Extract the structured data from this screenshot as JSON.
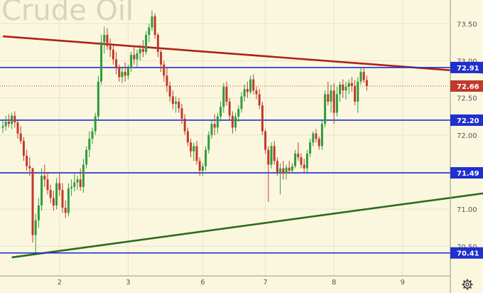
{
  "watermark": "Crude Oil",
  "colors": {
    "background": "#fbf7df",
    "grid": "#e9e4c6",
    "candle_up": "#2e9c3a",
    "candle_down": "#c0392b",
    "level_line": "#1f2fd0",
    "resistance_trend": "#b0201a",
    "support_trend": "#2c6b1e",
    "last_price": "#c0392b"
  },
  "settings_icon": "gear-icon",
  "chart_data": {
    "type": "candlestick",
    "title": "",
    "y_ticks": [
      "70.50",
      "71.00",
      "71.50",
      "72.00",
      "72.50",
      "73.00",
      "73.50"
    ],
    "ylim": [
      70.1,
      73.82
    ],
    "x_ticks": [
      "2",
      "3",
      "6",
      "7",
      "8",
      "9"
    ],
    "level_lines": [
      {
        "value": 72.91,
        "label": "72.91"
      },
      {
        "value": 72.2,
        "label": "72.20"
      },
      {
        "value": 71.49,
        "label": "71.49"
      },
      {
        "value": 70.41,
        "label": "70.41"
      }
    ],
    "last_price": {
      "value": 72.66,
      "label": "72.66"
    },
    "trendlines": [
      {
        "name": "resistance",
        "from": {
          "bar": 0,
          "y": 73.33
        },
        "to": {
          "bar": 197,
          "y": 72.73
        }
      },
      {
        "name": "support",
        "from": {
          "bar": 3,
          "y": 70.35
        },
        "to": {
          "bar": 197,
          "y": 71.41
        }
      }
    ],
    "candles": [
      [
        72.1,
        72.2,
        72.03,
        72.12
      ],
      [
        72.12,
        72.26,
        72.06,
        72.18
      ],
      [
        72.18,
        72.28,
        72.1,
        72.15
      ],
      [
        72.15,
        72.3,
        72.08,
        72.26
      ],
      [
        72.26,
        72.32,
        72.1,
        72.17
      ],
      [
        72.17,
        72.2,
        71.95,
        72.02
      ],
      [
        72.02,
        72.12,
        71.88,
        71.92
      ],
      [
        71.92,
        71.97,
        71.65,
        71.72
      ],
      [
        71.72,
        71.8,
        71.52,
        71.58
      ],
      [
        71.58,
        71.7,
        71.45,
        71.55
      ],
      [
        71.55,
        71.56,
        70.55,
        70.65
      ],
      [
        70.65,
        70.94,
        70.41,
        70.85
      ],
      [
        70.85,
        71.15,
        70.75,
        71.05
      ],
      [
        71.05,
        71.55,
        70.98,
        71.45
      ],
      [
        71.45,
        71.6,
        71.3,
        71.4
      ],
      [
        71.4,
        71.5,
        71.2,
        71.26
      ],
      [
        71.26,
        71.33,
        71.08,
        71.15
      ],
      [
        71.15,
        71.25,
        70.98,
        71.05
      ],
      [
        71.05,
        71.42,
        71.0,
        71.35
      ],
      [
        71.35,
        71.5,
        71.18,
        71.26
      ],
      [
        71.26,
        71.35,
        70.95,
        71.02
      ],
      [
        71.02,
        71.12,
        70.88,
        70.95
      ],
      [
        70.95,
        71.35,
        70.9,
        71.28
      ],
      [
        71.28,
        71.4,
        71.18,
        71.3
      ],
      [
        71.3,
        71.48,
        71.24,
        71.36
      ],
      [
        71.36,
        71.45,
        71.26,
        71.4
      ],
      [
        71.4,
        71.55,
        71.25,
        71.3
      ],
      [
        71.3,
        71.68,
        71.22,
        71.6
      ],
      [
        71.6,
        71.85,
        71.55,
        71.8
      ],
      [
        71.8,
        72.05,
        71.7,
        71.95
      ],
      [
        71.95,
        72.1,
        71.88,
        72.05
      ],
      [
        72.05,
        72.3,
        72.0,
        72.25
      ],
      [
        72.25,
        72.8,
        72.2,
        72.72
      ],
      [
        72.72,
        73.35,
        72.68,
        73.25
      ],
      [
        73.25,
        73.46,
        73.1,
        73.35
      ],
      [
        73.35,
        73.44,
        73.15,
        73.2
      ],
      [
        73.2,
        73.3,
        73.05,
        73.15
      ],
      [
        73.15,
        73.22,
        72.95,
        73.02
      ],
      [
        73.02,
        73.12,
        72.82,
        72.9
      ],
      [
        72.9,
        72.95,
        72.72,
        72.78
      ],
      [
        72.78,
        72.92,
        72.7,
        72.85
      ],
      [
        72.85,
        72.98,
        72.72,
        72.8
      ],
      [
        72.8,
        72.95,
        72.75,
        72.9
      ],
      [
        72.9,
        73.12,
        72.85,
        73.08
      ],
      [
        73.08,
        73.2,
        72.95,
        73.02
      ],
      [
        73.02,
        73.15,
        72.92,
        73.1
      ],
      [
        73.1,
        73.22,
        73.0,
        73.16
      ],
      [
        73.16,
        73.28,
        73.05,
        73.12
      ],
      [
        73.12,
        73.4,
        73.08,
        73.35
      ],
      [
        73.35,
        73.5,
        73.25,
        73.45
      ],
      [
        73.45,
        73.68,
        73.4,
        73.6
      ],
      [
        73.6,
        73.64,
        73.3,
        73.35
      ],
      [
        73.35,
        73.38,
        73.05,
        73.12
      ],
      [
        73.12,
        73.15,
        72.85,
        72.95
      ],
      [
        72.95,
        73.0,
        72.72,
        72.8
      ],
      [
        72.8,
        72.9,
        72.58,
        72.66
      ],
      [
        72.66,
        72.72,
        72.45,
        72.52
      ],
      [
        72.52,
        72.6,
        72.35,
        72.42
      ],
      [
        72.42,
        72.52,
        72.3,
        72.45
      ],
      [
        72.45,
        72.5,
        72.3,
        72.36
      ],
      [
        72.36,
        72.42,
        72.15,
        72.22
      ],
      [
        72.22,
        72.28,
        72.0,
        72.05
      ],
      [
        72.05,
        72.1,
        71.85,
        71.9
      ],
      [
        71.9,
        71.95,
        71.7,
        71.78
      ],
      [
        71.78,
        71.9,
        71.65,
        71.85
      ],
      [
        71.85,
        71.92,
        71.6,
        71.65
      ],
      [
        71.65,
        71.7,
        71.45,
        71.52
      ],
      [
        71.52,
        71.62,
        71.45,
        71.58
      ],
      [
        71.58,
        71.85,
        71.52,
        71.8
      ],
      [
        71.8,
        72.05,
        71.75,
        72.0
      ],
      [
        72.0,
        72.2,
        71.95,
        72.15
      ],
      [
        72.15,
        72.28,
        72.0,
        72.1
      ],
      [
        72.1,
        72.3,
        72.02,
        72.25
      ],
      [
        72.25,
        72.45,
        72.18,
        72.38
      ],
      [
        72.38,
        72.7,
        72.3,
        72.65
      ],
      [
        72.65,
        72.72,
        72.4,
        72.45
      ],
      [
        72.45,
        72.5,
        72.2,
        72.26
      ],
      [
        72.26,
        72.32,
        72.02,
        72.1
      ],
      [
        72.1,
        72.3,
        72.05,
        72.25
      ],
      [
        72.25,
        72.4,
        72.18,
        72.35
      ],
      [
        72.35,
        72.58,
        72.3,
        72.52
      ],
      [
        72.52,
        72.68,
        72.45,
        72.62
      ],
      [
        72.62,
        72.72,
        72.5,
        72.58
      ],
      [
        72.58,
        72.8,
        72.55,
        72.75
      ],
      [
        72.75,
        72.82,
        72.55,
        72.6
      ],
      [
        72.6,
        72.65,
        72.48,
        72.55
      ],
      [
        72.55,
        72.62,
        72.35,
        72.4
      ],
      [
        72.4,
        72.45,
        72.0,
        72.05
      ],
      [
        72.05,
        72.08,
        71.75,
        71.8
      ],
      [
        71.8,
        71.85,
        71.1,
        71.6
      ],
      [
        71.6,
        71.9,
        71.55,
        71.85
      ],
      [
        71.85,
        71.92,
        71.6,
        71.65
      ],
      [
        71.65,
        71.7,
        71.45,
        71.5
      ],
      [
        71.5,
        71.62,
        71.2,
        71.55
      ],
      [
        71.55,
        71.65,
        71.4,
        71.48
      ],
      [
        71.48,
        71.6,
        71.4,
        71.56
      ],
      [
        71.56,
        71.65,
        71.48,
        71.52
      ],
      [
        71.52,
        71.62,
        71.48,
        71.58
      ],
      [
        71.58,
        71.8,
        71.55,
        71.75
      ],
      [
        71.75,
        71.9,
        71.65,
        71.7
      ],
      [
        71.7,
        71.75,
        71.55,
        71.6
      ],
      [
        71.6,
        71.68,
        71.48,
        71.55
      ],
      [
        71.55,
        71.8,
        71.5,
        71.75
      ],
      [
        71.75,
        71.95,
        71.7,
        71.9
      ],
      [
        71.9,
        72.05,
        71.85,
        72.02
      ],
      [
        72.02,
        72.08,
        71.9,
        71.95
      ],
      [
        71.95,
        71.98,
        71.8,
        71.85
      ],
      [
        71.85,
        72.2,
        71.8,
        72.15
      ],
      [
        72.15,
        72.6,
        72.1,
        72.55
      ],
      [
        72.55,
        72.72,
        72.4,
        72.45
      ],
      [
        72.45,
        72.68,
        72.3,
        72.6
      ],
      [
        72.6,
        72.7,
        72.15,
        72.3
      ],
      [
        72.3,
        72.65,
        72.25,
        72.55
      ],
      [
        72.55,
        72.72,
        72.45,
        72.68
      ],
      [
        72.68,
        72.75,
        72.5,
        72.6
      ],
      [
        72.6,
        72.72,
        72.48,
        72.65
      ],
      [
        72.65,
        72.75,
        72.55,
        72.7
      ],
      [
        72.7,
        72.78,
        72.58,
        72.66
      ],
      [
        72.66,
        72.74,
        72.4,
        72.45
      ],
      [
        72.45,
        72.78,
        72.3,
        72.72
      ],
      [
        72.72,
        72.92,
        72.68,
        72.85
      ],
      [
        72.85,
        72.9,
        72.7,
        72.74
      ],
      [
        72.74,
        72.8,
        72.6,
        72.66
      ]
    ]
  }
}
